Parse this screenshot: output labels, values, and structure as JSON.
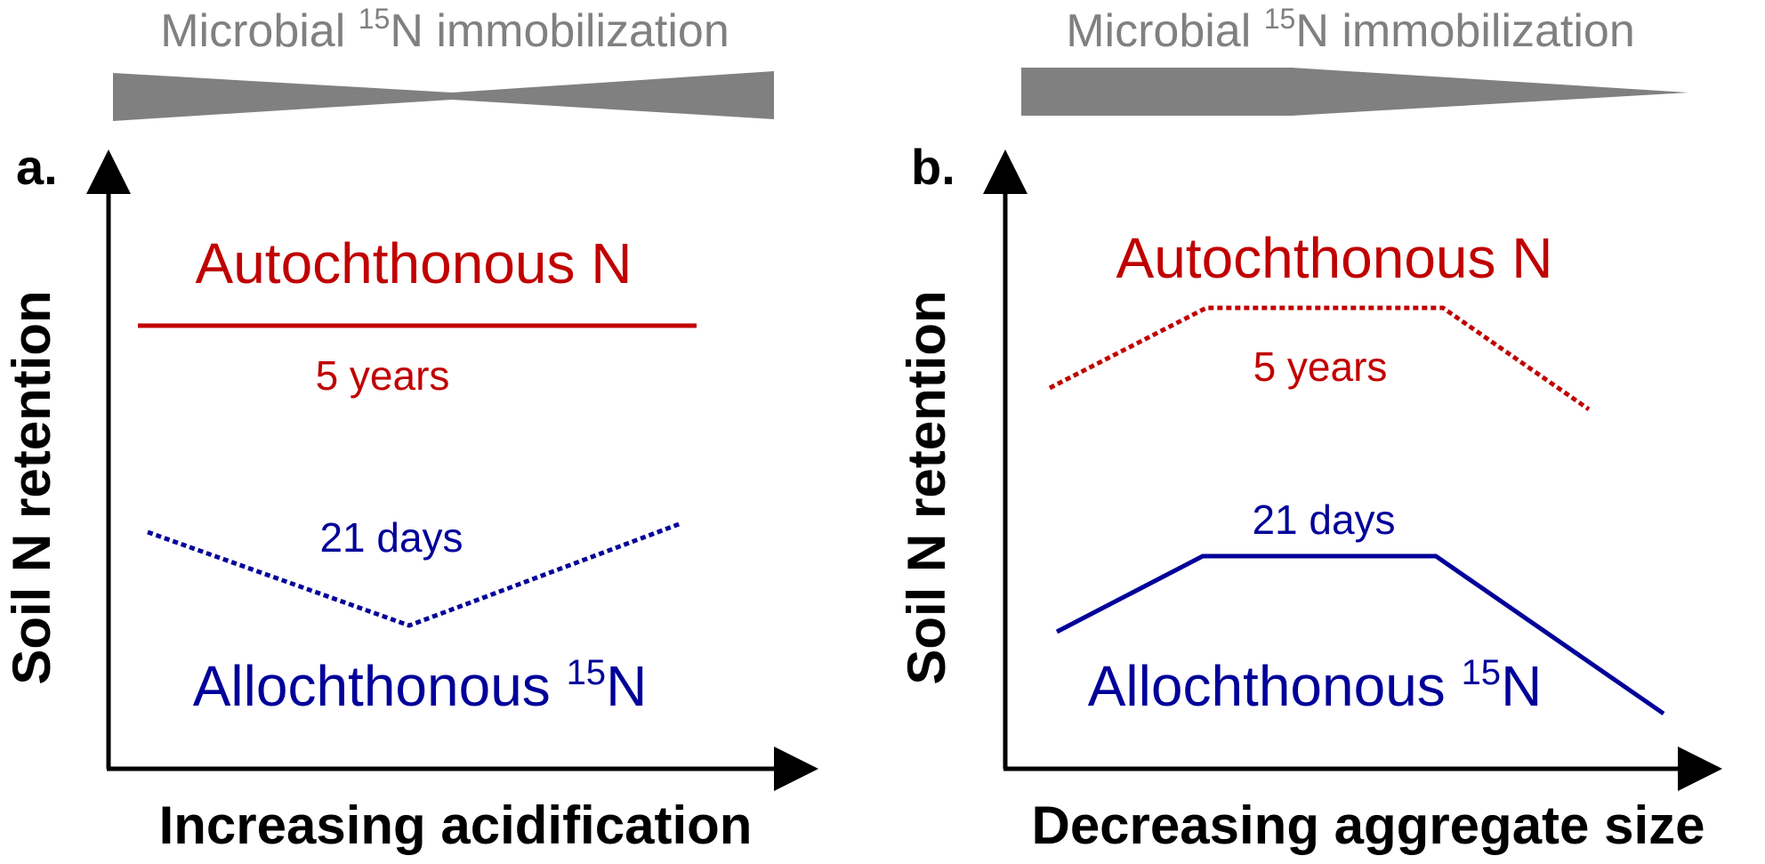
{
  "panels": [
    {
      "letter": "a.",
      "header": {
        "prefix": "Microbial ",
        "superscript": "15",
        "suffix": "N immobilization"
      },
      "ylabel": "Soil N retention",
      "xlabel": "Increasing acidification",
      "autochthonous_label": "Autochthonous N",
      "autochthonous_period": "5 years",
      "allochthonous_label_prefix": "Allochthonous ",
      "allochthonous_label_superscript": "15",
      "allochthonous_label_suffix": "N",
      "allochthonous_period": "21 days"
    },
    {
      "letter": "b.",
      "header": {
        "prefix": "Microbial ",
        "superscript": "15",
        "suffix": "N immobilization"
      },
      "ylabel": "Soil N retention",
      "xlabel": "Decreasing aggregate size",
      "autochthonous_label": "Autochthonous N",
      "autochthonous_period": "5 years",
      "allochthonous_label_prefix": "Allochthonous ",
      "allochthonous_label_superscript": "15",
      "allochthonous_label_suffix": "N",
      "allochthonous_period": "21 days"
    }
  ],
  "colors": {
    "autochthonous": "#c00000",
    "allochthonous": "#000099",
    "wedge": "#808080",
    "axis": "#000000"
  }
}
